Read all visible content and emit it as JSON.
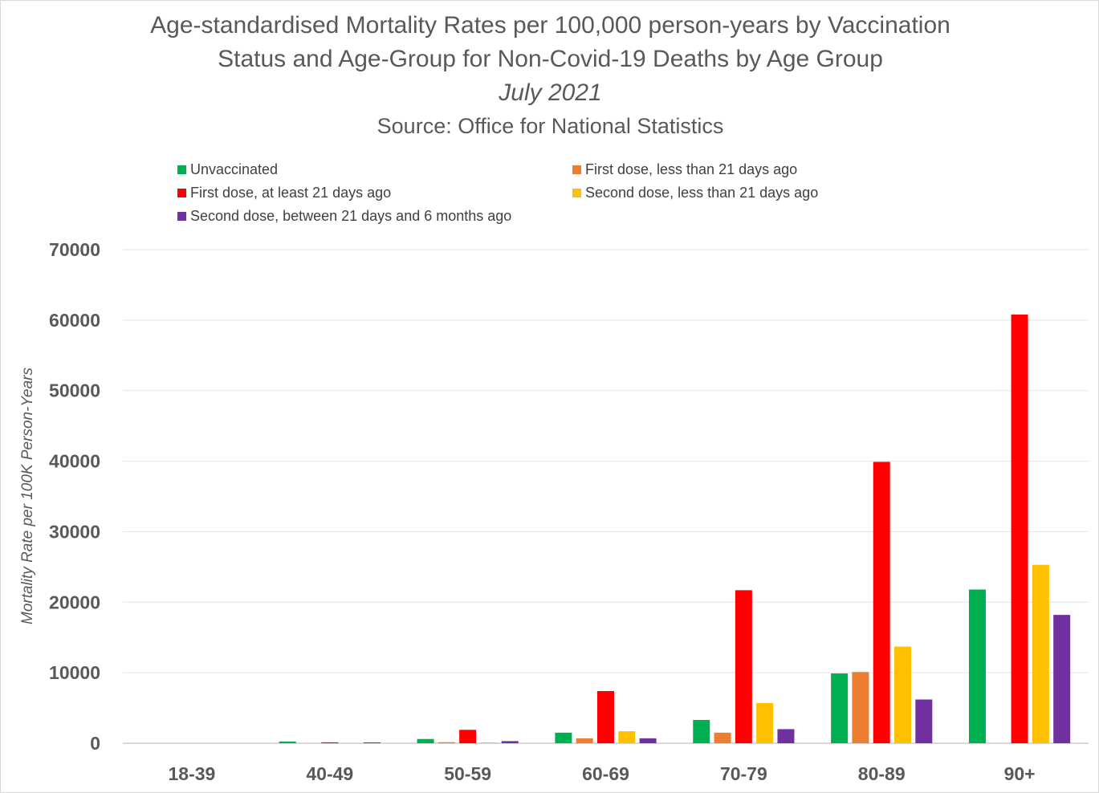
{
  "chart_data": {
    "type": "bar",
    "title": [
      "Age-standardised Mortality Rates per 100,000 person-years by Vaccination",
      "Status and Age-Group for Non-Covid-19 Deaths by Age Group"
    ],
    "subtitle": "July 2021",
    "source": "Source: Office for National Statistics",
    "xlabel": "",
    "ylabel": "Mortality Rate per 100K Person-Years",
    "ylim": [
      0,
      70000
    ],
    "yticks": [
      0,
      10000,
      20000,
      30000,
      40000,
      50000,
      60000,
      70000
    ],
    "grid": true,
    "legend_position": "top",
    "categories": [
      "18-39",
      "40-49",
      "50-59",
      "60-69",
      "70-79",
      "80-89",
      "90+"
    ],
    "series": [
      {
        "name": "Unvaccinated",
        "color": "#00B050",
        "values": [
          0,
          250,
          600,
          1500,
          3300,
          9900,
          21800
        ]
      },
      {
        "name": "First dose, less than 21 days ago",
        "color": "#ED7D31",
        "values": [
          0,
          0,
          150,
          700,
          1500,
          10100,
          0
        ]
      },
      {
        "name": "First dose, at least 21 days ago",
        "color": "#FF0000",
        "values": [
          0,
          130,
          1900,
          7400,
          21700,
          39900,
          60800
        ]
      },
      {
        "name": "Second dose, less than 21 days ago",
        "color": "#FFC000",
        "values": [
          0,
          0,
          100,
          1700,
          5700,
          13700,
          25300
        ]
      },
      {
        "name": "Second dose, between 21 days and 6 months ago",
        "color": "#7030A0",
        "values": [
          0,
          120,
          300,
          700,
          2000,
          6200,
          18200
        ]
      }
    ]
  }
}
